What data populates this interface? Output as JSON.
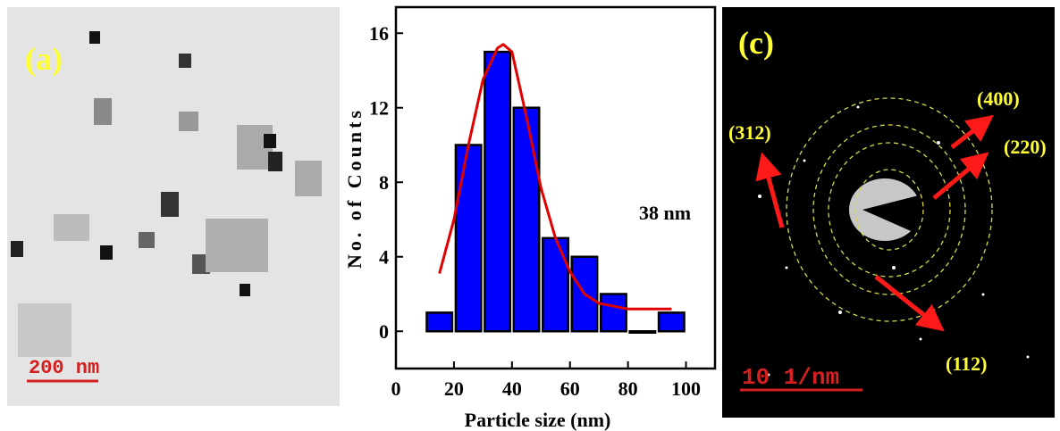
{
  "panel_a": {
    "label": "(a)",
    "scale_bar": "200 nm"
  },
  "chart_data": {
    "type": "histogram",
    "xlabel": "Particle size (nm)",
    "ylabel": "No. of Counts",
    "annotation": "38 nm",
    "bins": [
      10,
      20,
      30,
      40,
      50,
      60,
      70,
      80,
      90,
      100
    ],
    "values": [
      1,
      10,
      15,
      12,
      5,
      4,
      2,
      0,
      1
    ],
    "color": "#0000ff",
    "fit": {
      "color": "#e00000",
      "x": [
        15,
        20,
        25,
        30,
        35,
        37,
        40,
        45,
        50,
        55,
        60,
        65,
        70,
        80,
        90,
        95
      ],
      "y": [
        3.1,
        6,
        10,
        13.5,
        15.2,
        15.4,
        15,
        11.5,
        7.7,
        5,
        3.2,
        2,
        1.5,
        1.2,
        1.2,
        1.2
      ]
    },
    "xlim": [
      0,
      110
    ],
    "ylim": [
      -2,
      17.4
    ],
    "xticks": [
      0,
      20,
      40,
      60,
      80,
      100
    ],
    "yticks": [
      0,
      4,
      8,
      12,
      16
    ]
  },
  "panel_c": {
    "label": "(c)",
    "scale_bar": "10 1/nm",
    "planes": [
      "(400)",
      "(220)",
      "(312)",
      "(112)"
    ]
  }
}
